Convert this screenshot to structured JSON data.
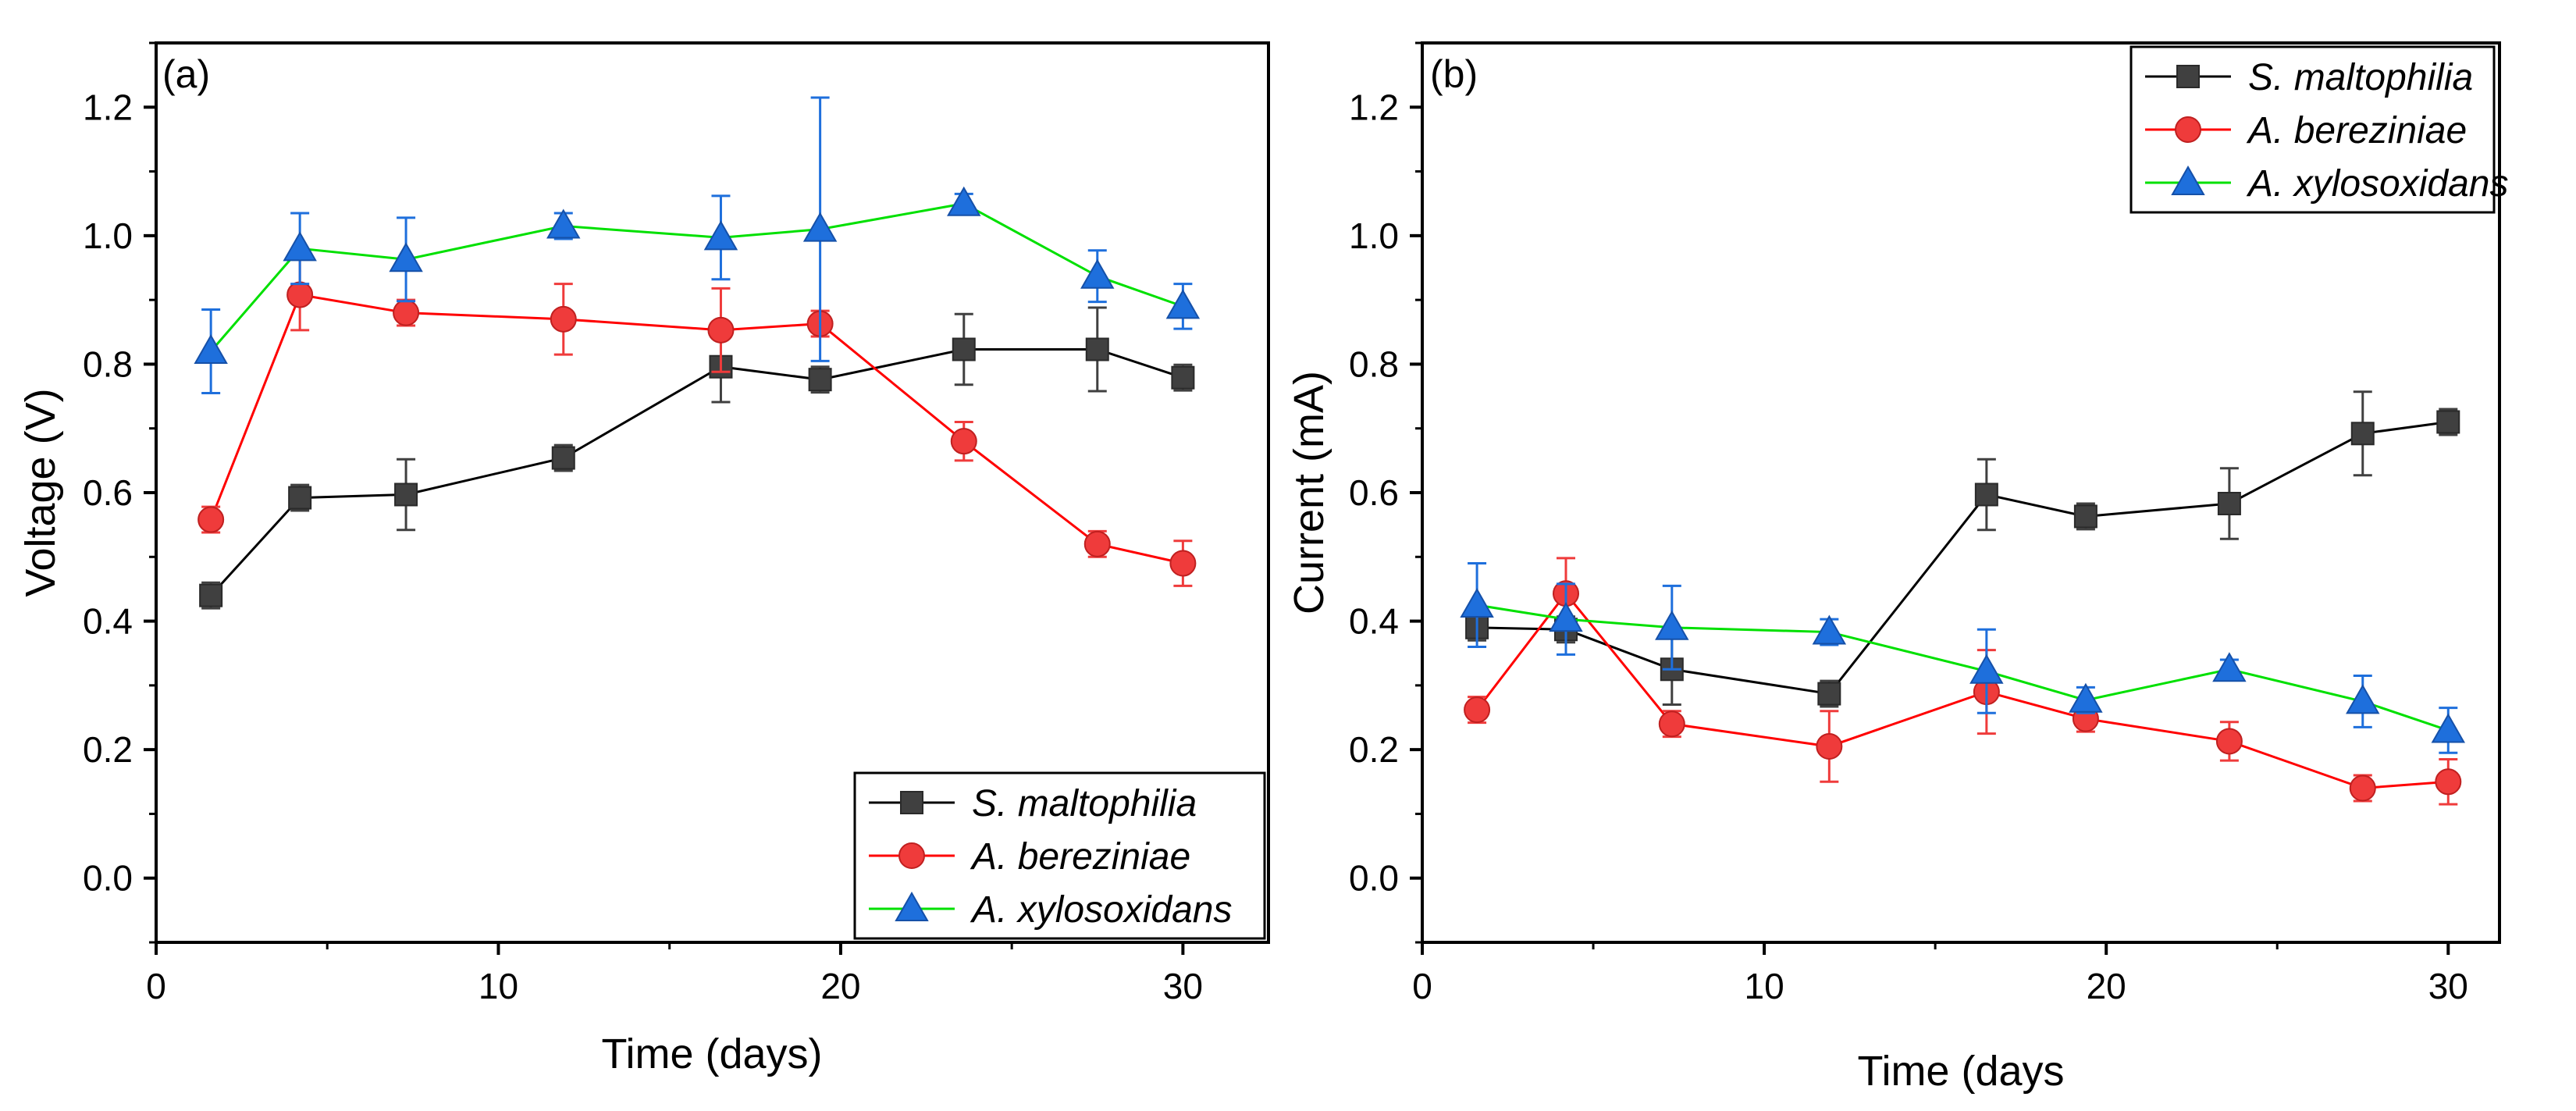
{
  "chart_data": [
    {
      "type": "line",
      "panel_label": "(a)",
      "xlabel": "Time (days)",
      "ylabel": "Voltage (V)",
      "xlim": [
        0,
        32.5
      ],
      "ylim": [
        -0.1,
        1.3
      ],
      "xticks": [
        0,
        10,
        20,
        30
      ],
      "xtick_labels": [
        "0",
        "10",
        "20",
        "30"
      ],
      "yticks": [
        0.0,
        0.2,
        0.4,
        0.6,
        0.8,
        1.0,
        1.2
      ],
      "ytick_labels": [
        "0.0",
        "0.2",
        "0.4",
        "0.6",
        "0.8",
        "1.0",
        "1.2"
      ],
      "legend_position": "bottom-right",
      "series": [
        {
          "name": "S. maltophilia",
          "color": "#000000",
          "marker_color": "#404040",
          "marker": "square",
          "x": [
            1.6,
            4.2,
            7.3,
            11.9,
            16.5,
            19.4,
            23.6,
            27.5,
            30.0
          ],
          "y": [
            0.44,
            0.592,
            0.597,
            0.654,
            0.796,
            0.776,
            0.823,
            0.823,
            0.779
          ],
          "err": [
            0.02,
            0.02,
            0.055,
            0.02,
            0.055,
            0.02,
            0.055,
            0.065,
            0.02
          ]
        },
        {
          "name": "A. bereziniae",
          "color": "#ff0000",
          "marker_color": "#ef3b3b",
          "marker": "circle",
          "x": [
            1.6,
            4.2,
            7.3,
            11.9,
            16.5,
            19.4,
            23.6,
            27.5,
            30.0
          ],
          "y": [
            0.558,
            0.908,
            0.88,
            0.87,
            0.853,
            0.863,
            0.68,
            0.52,
            0.49
          ],
          "err": [
            0.02,
            0.055,
            0.02,
            0.055,
            0.065,
            0.02,
            0.03,
            0.02,
            0.035
          ]
        },
        {
          "name": "A. xylosoxidans",
          "color": "#00e000",
          "marker_color": "#1e6fdc",
          "marker": "triangle",
          "x": [
            1.6,
            4.2,
            7.3,
            11.9,
            16.5,
            19.4,
            23.6,
            27.5,
            30.0
          ],
          "y": [
            0.82,
            0.98,
            0.963,
            1.015,
            0.997,
            1.01,
            1.05,
            0.937,
            0.89
          ],
          "err": [
            0.065,
            0.055,
            0.065,
            0.02,
            0.065,
            0.205,
            0.015,
            0.04,
            0.035
          ]
        }
      ]
    },
    {
      "type": "line",
      "panel_label": "(b)",
      "xlabel": "Time (days",
      "ylabel": "Current (mA)",
      "xlim": [
        0,
        31.5
      ],
      "ylim": [
        -0.1,
        1.3
      ],
      "xticks": [
        0,
        10,
        20,
        30
      ],
      "xtick_labels": [
        "0",
        "10",
        "20",
        "30"
      ],
      "yticks": [
        0.0,
        0.2,
        0.4,
        0.6,
        0.8,
        1.0,
        1.2
      ],
      "ytick_labels": [
        "0.0",
        "0.2",
        "0.4",
        "0.6",
        "0.8",
        "1.0",
        "1.2"
      ],
      "legend_position": "top-right",
      "series": [
        {
          "name": "S. maltophilia",
          "color": "#000000",
          "marker_color": "#404040",
          "marker": "square",
          "x": [
            1.6,
            4.2,
            7.3,
            11.9,
            16.5,
            19.4,
            23.6,
            27.5,
            30.0
          ],
          "y": [
            0.39,
            0.387,
            0.325,
            0.287,
            0.597,
            0.563,
            0.583,
            0.692,
            0.71
          ],
          "err": [
            0.02,
            0.02,
            0.055,
            0.02,
            0.055,
            0.02,
            0.055,
            0.065,
            0.02
          ]
        },
        {
          "name": "A. bereziniae",
          "color": "#ff0000",
          "marker_color": "#ef3b3b",
          "marker": "circle",
          "x": [
            1.6,
            4.2,
            7.3,
            11.9,
            16.5,
            19.4,
            23.6,
            27.5,
            30.0
          ],
          "y": [
            0.262,
            0.443,
            0.24,
            0.205,
            0.29,
            0.248,
            0.213,
            0.14,
            0.15
          ],
          "err": [
            0.02,
            0.055,
            0.02,
            0.055,
            0.065,
            0.02,
            0.03,
            0.02,
            0.035
          ]
        },
        {
          "name": "A. xylosoxidans",
          "color": "#00e000",
          "marker_color": "#1e6fdc",
          "marker": "triangle",
          "x": [
            1.6,
            4.2,
            7.3,
            11.9,
            16.5,
            19.4,
            23.6,
            27.5,
            30.0
          ],
          "y": [
            0.425,
            0.403,
            0.39,
            0.383,
            0.322,
            0.277,
            0.325,
            0.275,
            0.23
          ],
          "err": [
            0.065,
            0.055,
            0.065,
            0.02,
            0.065,
            0.02,
            0.015,
            0.04,
            0.035
          ]
        }
      ]
    }
  ]
}
